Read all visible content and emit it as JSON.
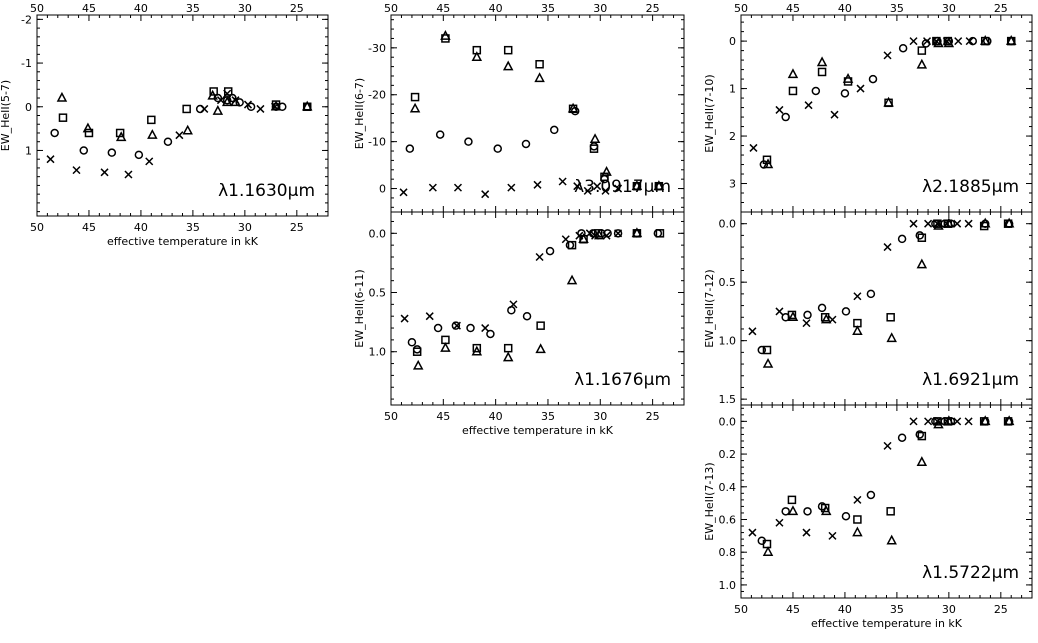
{
  "figure": {
    "xlabel": "effective temperature in kK",
    "marker_types": [
      "circle",
      "square",
      "triangle",
      "cross"
    ]
  },
  "chart_data": [
    {
      "type": "scatter",
      "id": "p57",
      "ylabel": "EW_HeII(5-7)",
      "annotation": "λ1.1630μm",
      "xlim": [
        50,
        22
      ],
      "ylim": [
        -2.1,
        2.5
      ],
      "xticks": [
        50,
        45,
        40,
        35,
        30,
        25
      ],
      "yticks": [
        {
          "v": -2,
          "l": "-2"
        },
        {
          "v": -1,
          "l": "-1"
        },
        {
          "v": 0,
          "l": "0"
        },
        {
          "v": 1,
          "l": "1"
        }
      ],
      "grid": false,
      "series": [
        {
          "marker": "circle",
          "x": [
            48.3,
            45.5,
            42.8,
            40.2,
            37.4,
            34.3,
            32.6,
            31.7,
            31.2,
            30.5,
            29.4,
            27,
            26.4,
            24
          ],
          "y": [
            0.6,
            1.0,
            1.05,
            1.1,
            0.8,
            0.05,
            -0.2,
            -0.15,
            -0.2,
            -0.1,
            0,
            0,
            0,
            0
          ]
        },
        {
          "marker": "square",
          "x": [
            47.5,
            45,
            42,
            39,
            35.6,
            33,
            31.6,
            27,
            24
          ],
          "y": [
            0.25,
            0.6,
            0.6,
            0.3,
            0.05,
            -0.35,
            -0.35,
            -0.05,
            0
          ]
        },
        {
          "marker": "triangle",
          "x": [
            47.6,
            45.1,
            41.9,
            38.9,
            35.5,
            33.1,
            32.6,
            31.7,
            30.9,
            27,
            24
          ],
          "y": [
            -0.2,
            0.5,
            0.7,
            0.65,
            0.55,
            -0.25,
            0.1,
            -0.1,
            -0.1,
            0,
            0
          ]
        },
        {
          "marker": "cross",
          "x": [
            48.7,
            46.2,
            43.5,
            41.2,
            39.2,
            36.3,
            33.9,
            32.3,
            31.7,
            30.9,
            29.7,
            28.5,
            27.1
          ],
          "y": [
            1.2,
            1.45,
            1.5,
            1.55,
            1.25,
            0.65,
            0.05,
            -0.15,
            -0.3,
            -0.15,
            -0.05,
            0.05,
            0
          ]
        }
      ]
    },
    {
      "type": "scatter",
      "id": "p67",
      "ylabel": "EW_HeII(6-7)",
      "annotation": "λ3.0917μm",
      "xlim": [
        50,
        22
      ],
      "ylim": [
        -37,
        5
      ],
      "xticks": [
        50,
        45,
        40,
        35,
        30,
        25
      ],
      "yticks": [
        {
          "v": -30,
          "l": "-30"
        },
        {
          "v": -20,
          "l": "-20"
        },
        {
          "v": -10,
          "l": "-10"
        },
        {
          "v": 0,
          "l": "0"
        }
      ],
      "grid": false,
      "series": [
        {
          "marker": "circle",
          "x": [
            48.2,
            45.3,
            42.6,
            39.8,
            37.1,
            34.4,
            32.4,
            30.6,
            29.6,
            26.5,
            24.4
          ],
          "y": [
            -8.5,
            -11.5,
            -10,
            -8.5,
            -9.5,
            -12.5,
            -16.5,
            -9,
            -2,
            -0.5,
            -0.5
          ]
        },
        {
          "marker": "square",
          "x": [
            47.7,
            44.8,
            41.8,
            38.8,
            35.8,
            32.6,
            30.6,
            29.6,
            26.5,
            24.4
          ],
          "y": [
            -19.5,
            -32,
            -29.5,
            -29.5,
            -26.5,
            -17,
            -8.5,
            -2.5,
            -0.5,
            -0.5
          ]
        },
        {
          "marker": "triangle",
          "x": [
            47.7,
            44.8,
            41.8,
            38.8,
            35.8,
            32.6,
            30.5,
            29.4,
            26.5,
            24.4
          ],
          "y": [
            -17,
            -32.5,
            -28,
            -26,
            -23.5,
            -17,
            -10.5,
            -3.5,
            -0.5,
            -0.5
          ]
        },
        {
          "marker": "cross",
          "x": [
            48.8,
            46,
            43.6,
            41,
            38.5,
            36,
            33.6,
            32.2,
            31.2,
            30.3,
            29.5,
            28.3
          ],
          "y": [
            0.8,
            -0.2,
            -0.2,
            1.2,
            -0.2,
            -0.8,
            -1.5,
            -0.5,
            0.5,
            -0.5,
            0.5,
            0
          ]
        }
      ]
    },
    {
      "type": "scatter",
      "id": "p611",
      "ylabel": "EW_HeII(6-11)",
      "annotation": "λ1.1676μm",
      "xlim": [
        50,
        22
      ],
      "ylim": [
        -0.18,
        1.45
      ],
      "xticks": [
        50,
        45,
        40,
        35,
        30,
        25
      ],
      "yticks": [
        {
          "v": 0,
          "l": "0.0"
        },
        {
          "v": 0.5,
          "l": "0.5"
        },
        {
          "v": 1,
          "l": "1.0"
        }
      ],
      "grid": false,
      "series": [
        {
          "marker": "circle",
          "x": [
            48,
            47.5,
            45.5,
            43.8,
            42.4,
            40.5,
            38.5,
            37,
            34.8,
            32.9,
            31.8,
            30.7,
            29.9,
            29.3,
            28.3,
            26.5,
            24.5
          ],
          "y": [
            0.92,
            0.98,
            0.8,
            0.78,
            0.8,
            0.85,
            0.65,
            0.7,
            0.15,
            0.1,
            0.0,
            0.0,
            0.0,
            0.0,
            0.0,
            0.0,
            0.0
          ]
        },
        {
          "marker": "square",
          "x": [
            47.5,
            44.8,
            41.8,
            38.8,
            35.7,
            32.7,
            31.6,
            30.2,
            26.5,
            24.3
          ],
          "y": [
            1.0,
            0.9,
            0.97,
            0.97,
            0.78,
            0.1,
            0.05,
            0.0,
            0.0,
            0.0
          ]
        },
        {
          "marker": "triangle",
          "x": [
            47.4,
            44.8,
            41.8,
            38.8,
            35.7,
            32.7,
            31.6,
            30.1,
            26.5
          ],
          "y": [
            1.12,
            0.97,
            1.0,
            1.05,
            0.98,
            0.4,
            0.05,
            0.02,
            0.0
          ]
        },
        {
          "marker": "cross",
          "x": [
            48.7,
            46.3,
            43.7,
            41,
            38.3,
            35.8,
            33.3,
            32,
            31,
            30.5,
            29.4,
            28.3
          ],
          "y": [
            0.72,
            0.7,
            0.78,
            0.8,
            0.6,
            0.2,
            0.05,
            0.02,
            0.0,
            0.02,
            0.02,
            0.0
          ]
        }
      ]
    },
    {
      "type": "scatter",
      "id": "p710",
      "ylabel": "EW_HeII(7-10)",
      "annotation": "λ2.1885μm",
      "xlim": [
        50,
        22
      ],
      "ylim": [
        -0.55,
        3.6
      ],
      "xticks": [
        50,
        45,
        40,
        35,
        30,
        25
      ],
      "yticks": [
        {
          "v": 0,
          "l": "0"
        },
        {
          "v": 1,
          "l": "1"
        },
        {
          "v": 2,
          "l": "2"
        },
        {
          "v": 3,
          "l": "3"
        }
      ],
      "grid": false,
      "series": [
        {
          "marker": "circle",
          "x": [
            47.8,
            45.7,
            42.8,
            40,
            37.3,
            34.4,
            32.2,
            31.1,
            30,
            27.7,
            26.3,
            24
          ],
          "y": [
            2.6,
            1.6,
            1.05,
            1.1,
            0.8,
            0.15,
            0.05,
            0.0,
            0.0,
            0.0,
            0.0,
            0.0
          ]
        },
        {
          "marker": "square",
          "x": [
            47.5,
            45,
            42.2,
            39.7,
            35.8,
            32.6,
            31.2,
            30.1,
            26.5,
            24
          ],
          "y": [
            2.5,
            1.05,
            0.65,
            0.85,
            1.3,
            0.2,
            0.0,
            0.0,
            0.0,
            0.0
          ]
        },
        {
          "marker": "triangle",
          "x": [
            47.4,
            45,
            42.2,
            39.7,
            35.8,
            32.6,
            31,
            30,
            26.5,
            24
          ],
          "y": [
            2.6,
            0.7,
            0.45,
            0.8,
            1.3,
            0.5,
            0.05,
            0.05,
            0.0,
            0.0
          ]
        },
        {
          "marker": "cross",
          "x": [
            48.8,
            46.3,
            43.5,
            41,
            38.5,
            35.9,
            33.4,
            32.1,
            31.2,
            30.2,
            29.1,
            28
          ],
          "y": [
            2.25,
            1.45,
            1.35,
            1.55,
            1.0,
            0.3,
            0.0,
            0.0,
            0.0,
            0.0,
            0.0,
            0.0
          ]
        }
      ]
    },
    {
      "type": "scatter",
      "id": "p712",
      "ylabel": "EW_HeII(7-12)",
      "annotation": "λ1.6921μm",
      "xlim": [
        50,
        22
      ],
      "ylim": [
        -0.1,
        1.55
      ],
      "xticks": [
        50,
        45,
        40,
        35,
        30,
        25
      ],
      "yticks": [
        {
          "v": 0,
          "l": "0.0"
        },
        {
          "v": 0.5,
          "l": "0.5"
        },
        {
          "v": 1,
          "l": "1.0"
        },
        {
          "v": 1.5,
          "l": "1.5"
        }
      ],
      "grid": false,
      "series": [
        {
          "marker": "circle",
          "x": [
            48,
            45.7,
            43.6,
            42.2,
            39.9,
            37.5,
            34.5,
            32.8,
            31.3,
            30.4,
            29.8,
            26.5,
            24.2
          ],
          "y": [
            1.08,
            0.8,
            0.78,
            0.72,
            0.75,
            0.6,
            0.13,
            0.1,
            0.0,
            0.0,
            0.0,
            0.0,
            0.0
          ]
        },
        {
          "marker": "square",
          "x": [
            47.5,
            45.1,
            41.9,
            38.8,
            35.6,
            32.6,
            31.1,
            30.1,
            26.6,
            24.3
          ],
          "y": [
            1.08,
            0.78,
            0.8,
            0.85,
            0.8,
            0.12,
            0.0,
            0.0,
            0.02,
            0.0
          ]
        },
        {
          "marker": "triangle",
          "x": [
            47.4,
            45,
            41.8,
            38.8,
            35.5,
            32.6,
            31,
            30,
            26.5,
            24.2
          ],
          "y": [
            1.2,
            0.8,
            0.82,
            0.92,
            0.98,
            0.35,
            0.02,
            0.0,
            0.0,
            0.0
          ]
        },
        {
          "marker": "cross",
          "x": [
            48.9,
            46.3,
            43.7,
            41.2,
            38.8,
            35.9,
            33.4,
            32,
            31.1,
            30.2,
            29.2,
            28.1
          ],
          "y": [
            0.92,
            0.75,
            0.85,
            0.82,
            0.62,
            0.2,
            0.0,
            0.0,
            0.0,
            0.0,
            0.0,
            0.0
          ]
        }
      ]
    },
    {
      "type": "scatter",
      "id": "p713",
      "ylabel": "EW_HeII(7-13)",
      "annotation": "λ1.5722μm",
      "xlim": [
        50,
        22
      ],
      "ylim": [
        -0.1,
        1.08
      ],
      "xticks": [
        50,
        45,
        40,
        35,
        30,
        25
      ],
      "yticks": [
        {
          "v": 0,
          "l": "0.0"
        },
        {
          "v": 0.2,
          "l": "0.2"
        },
        {
          "v": 0.4,
          "l": "0.4"
        },
        {
          "v": 0.6,
          "l": "0.6"
        },
        {
          "v": 0.8,
          "l": "0.8"
        },
        {
          "v": 1,
          "l": "1.0"
        }
      ],
      "grid": false,
      "series": [
        {
          "marker": "circle",
          "x": [
            48,
            45.7,
            43.6,
            42.2,
            39.9,
            37.5,
            34.5,
            32.8,
            31.3,
            30.4,
            29.8,
            26.5,
            24.2
          ],
          "y": [
            0.73,
            0.55,
            0.55,
            0.52,
            0.58,
            0.45,
            0.1,
            0.08,
            0.0,
            0.0,
            0.0,
            0.0,
            0.0
          ]
        },
        {
          "marker": "square",
          "x": [
            47.5,
            45.1,
            41.9,
            38.8,
            35.6,
            32.6,
            31.1,
            30.1,
            26.6,
            24.3
          ],
          "y": [
            0.75,
            0.48,
            0.53,
            0.6,
            0.55,
            0.09,
            0.0,
            0.0,
            0.0,
            0.0
          ]
        },
        {
          "marker": "triangle",
          "x": [
            47.4,
            45,
            41.8,
            38.8,
            35.5,
            32.6,
            31,
            30,
            26.5,
            24.2
          ],
          "y": [
            0.8,
            0.55,
            0.55,
            0.68,
            0.73,
            0.25,
            0.02,
            0.0,
            0.0,
            0.0
          ]
        },
        {
          "marker": "cross",
          "x": [
            48.9,
            46.3,
            43.7,
            41.2,
            38.8,
            35.9,
            33.4,
            32,
            31.1,
            30.2,
            29.2,
            28.1
          ],
          "y": [
            0.68,
            0.62,
            0.68,
            0.7,
            0.48,
            0.15,
            0.0,
            0.0,
            0.0,
            0.0,
            0.0,
            0.0
          ]
        }
      ]
    }
  ]
}
